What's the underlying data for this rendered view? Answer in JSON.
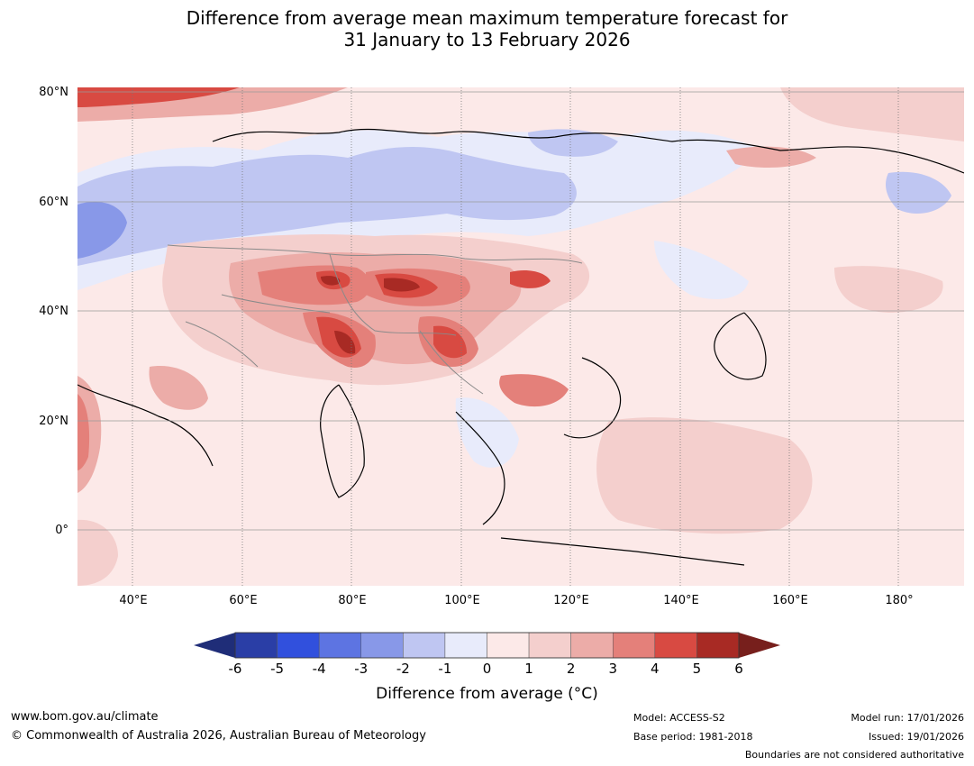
{
  "title": {
    "line1": "Difference from average mean maximum temperature forecast for",
    "line2": "31 January to 13 February 2026"
  },
  "map": {
    "lat_labels": [
      "80°N",
      "60°N",
      "40°N",
      "20°N",
      "0°"
    ],
    "lon_labels": [
      "40°E",
      "60°E",
      "80°E",
      "100°E",
      "120°E",
      "140°E",
      "160°E",
      "180°"
    ],
    "background_color": "#fce9e8"
  },
  "colorbar": {
    "ticks": [
      "-6",
      "-5",
      "-4",
      "-3",
      "-2",
      "-1",
      "0",
      "1",
      "2",
      "3",
      "4",
      "5",
      "6"
    ],
    "colors": [
      "#2a3ea6",
      "#3150dd",
      "#5d74e2",
      "#8898e8",
      "#bfc6f2",
      "#e8ebfb",
      "#fce9e8",
      "#f4cfcd",
      "#ecaca8",
      "#e4807a",
      "#d84a42",
      "#a82a24"
    ],
    "low_extend_color": "#1f2d78",
    "high_extend_color": "#771f1c",
    "label": "Difference from average (°C)"
  },
  "footer": {
    "website": "www.bom.gov.au/climate",
    "copyright": "© Commonwealth of Australia 2026, Australian Bureau of Meteorology",
    "model": "Model: ACCESS-S2",
    "base_period": "Base period: 1981-2018",
    "model_run": "Model run: 17/01/2026",
    "issued": "Issued: 19/01/2026",
    "disclaimer": "Boundaries are not considered authoritative"
  }
}
